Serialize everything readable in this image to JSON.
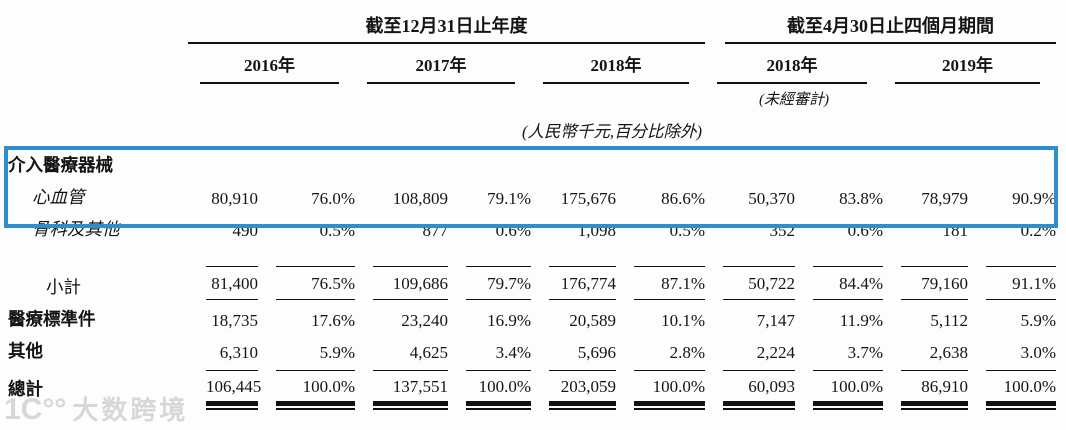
{
  "table": {
    "group_headers": [
      {
        "label": "截至12月31日止年度"
      },
      {
        "label": "截至4月30日止四個月期間"
      }
    ],
    "year_headers": [
      "2016年",
      "2017年",
      "2018年",
      "2018年",
      "2019年"
    ],
    "unaudited_note": "(未經審計)",
    "units_note": "(人民幣千元,百分比除外)",
    "rows": [
      {
        "label": "介入醫療器械",
        "style": "bold",
        "rule": "",
        "values": [
          "",
          "",
          "",
          "",
          "",
          "",
          "",
          "",
          "",
          ""
        ]
      },
      {
        "label": "心血管",
        "style": "italic-indent",
        "rule": "",
        "values": [
          "80,910",
          "76.0%",
          "108,809",
          "79.1%",
          "175,676",
          "86.6%",
          "50,370",
          "83.8%",
          "78,979",
          "90.9%"
        ]
      },
      {
        "label": "骨科及其他",
        "style": "italic-indent",
        "rule": "",
        "values": [
          "490",
          "0.5%",
          "877",
          "0.6%",
          "1,098",
          "0.5%",
          "352",
          "0.6%",
          "181",
          "0.2%"
        ]
      },
      {
        "label": "小計",
        "style": "indent2",
        "rule": "subtotal",
        "values": [
          "81,400",
          "76.5%",
          "109,686",
          "79.7%",
          "176,774",
          "87.1%",
          "50,722",
          "84.4%",
          "79,160",
          "91.1%"
        ]
      },
      {
        "label": "醫療標準件",
        "style": "bold",
        "rule": "",
        "values": [
          "18,735",
          "17.6%",
          "23,240",
          "16.9%",
          "20,589",
          "10.1%",
          "7,147",
          "11.9%",
          "5,112",
          "5.9%"
        ]
      },
      {
        "label": "其他",
        "style": "bold",
        "rule": "",
        "values": [
          "6,310",
          "5.9%",
          "4,625",
          "3.4%",
          "5,696",
          "2.8%",
          "2,224",
          "3.7%",
          "2,638",
          "3.0%"
        ]
      },
      {
        "label": "總計",
        "style": "bold",
        "rule": "total",
        "values": [
          "106,445",
          "100.0%",
          "137,551",
          "100.0%",
          "203,059",
          "100.0%",
          "60,093",
          "100.0%",
          "86,910",
          "100.0%"
        ]
      }
    ]
  },
  "highlight": {
    "color": "#2e8fce"
  },
  "watermark": {
    "logo": "1C°°",
    "text": "大数跨境"
  }
}
